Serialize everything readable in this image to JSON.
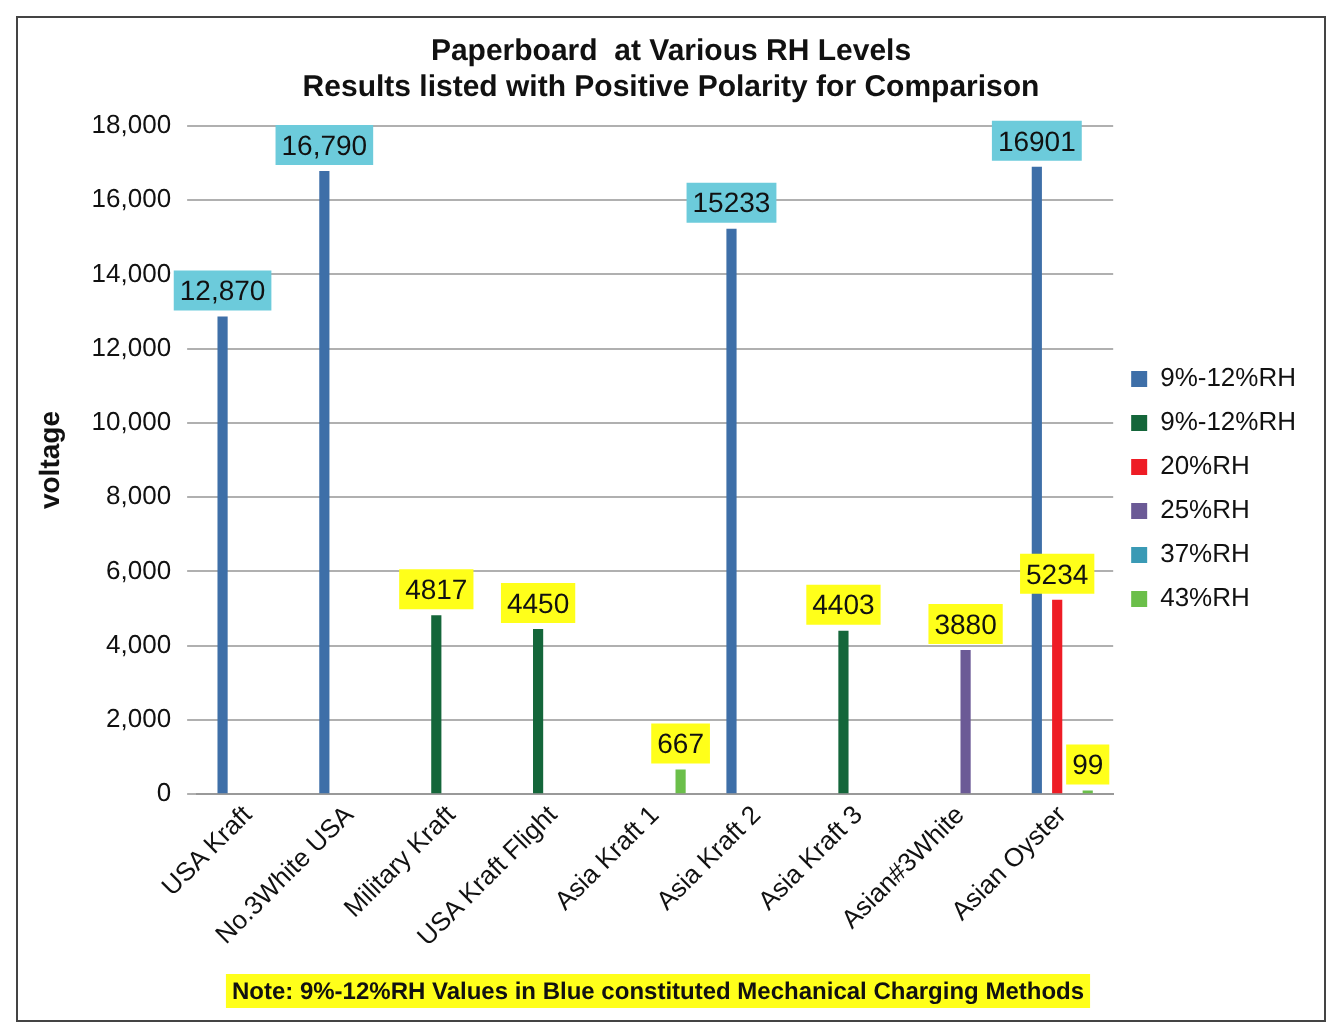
{
  "chart_data": {
    "type": "bar",
    "title": [
      "Paperboard  at Various RH Levels",
      "Results listed with Positive Polarity for Comparison"
    ],
    "ylabel": "voltage",
    "categories": [
      "USA Kraft",
      "No.3White USA",
      "Military Kraft",
      "USA Kraft Flight",
      "Asia Kraft 1",
      "Asia Kraft 2",
      "Asia Kraft 3",
      "Asian#3White",
      "Asian Oyster"
    ],
    "series": [
      {
        "name": "9%-12%RH",
        "color": "#3e6fa8",
        "values": [
          12870,
          16790,
          null,
          null,
          null,
          15233,
          null,
          null,
          16901
        ],
        "value_labels": [
          "12,870",
          "16,790",
          null,
          null,
          null,
          "15233",
          null,
          null,
          "16901"
        ]
      },
      {
        "name": "9%-12%RH",
        "color": "#14663a",
        "values": [
          null,
          null,
          4817,
          4450,
          null,
          null,
          4403,
          null,
          null
        ],
        "value_labels": [
          null,
          null,
          "4817",
          "4450",
          null,
          null,
          "4403",
          null,
          null
        ]
      },
      {
        "name": "20%RH",
        "color": "#ee1c25",
        "values": [
          null,
          null,
          null,
          null,
          null,
          null,
          null,
          null,
          5234
        ],
        "value_labels": [
          null,
          null,
          null,
          null,
          null,
          null,
          null,
          null,
          "5234"
        ]
      },
      {
        "name": "25%RH",
        "color": "#6b5a96",
        "values": [
          null,
          null,
          null,
          null,
          null,
          null,
          null,
          3880,
          null
        ],
        "value_labels": [
          null,
          null,
          null,
          null,
          null,
          null,
          null,
          "3880",
          null
        ]
      },
      {
        "name": "37%RH",
        "color": "#3a9ab5",
        "values": [
          null,
          null,
          null,
          null,
          null,
          null,
          null,
          null,
          null
        ]
      },
      {
        "name": "43%RH",
        "color": "#6bbf4a",
        "values": [
          null,
          null,
          null,
          null,
          667,
          null,
          null,
          null,
          99
        ],
        "value_labels": [
          null,
          null,
          null,
          null,
          "667",
          null,
          null,
          null,
          "99"
        ]
      }
    ],
    "ylim": [
      0,
      18000
    ],
    "yticks": [
      {
        "value": 0,
        "label": "0"
      },
      {
        "value": 2000,
        "label": "2,000"
      },
      {
        "value": 4000,
        "label": "4,000"
      },
      {
        "value": 6000,
        "label": "6,000"
      },
      {
        "value": 8000,
        "label": "8,000"
      },
      {
        "value": 10000,
        "label": "10,000"
      },
      {
        "value": 12000,
        "label": "12,000"
      },
      {
        "value": 14000,
        "label": "14,000"
      },
      {
        "value": 16000,
        "label": "16,000"
      },
      {
        "value": 18000,
        "label": "18,000"
      }
    ],
    "grid": "y",
    "legend": "right",
    "annotations": [
      "Note: 9%-12%RH Values in Blue constituted Mechanical Charging Methods"
    ]
  }
}
